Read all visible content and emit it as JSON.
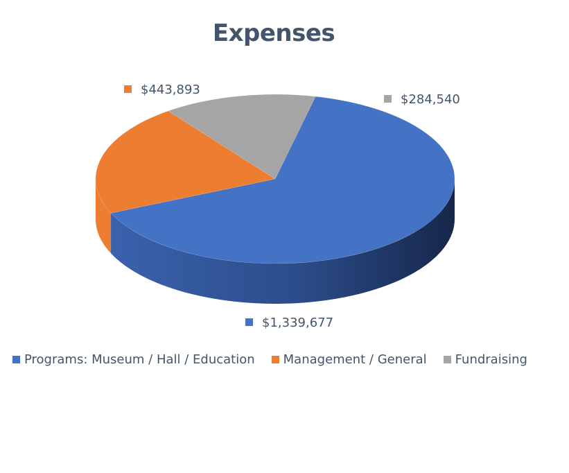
{
  "chart_data": {
    "type": "pie",
    "title": "Expenses",
    "categories": [
      "Programs: Museum / Hall / Education",
      "Management / General",
      "Fundraising"
    ],
    "values": [
      1339677,
      443893,
      284540
    ],
    "data_labels": [
      "$1,339,677",
      "$443,893",
      "$284,540"
    ],
    "colors": [
      "#4472c4",
      "#ed7d31",
      "#a5a5a5"
    ],
    "legend_position": "bottom",
    "style": "3d-pie"
  }
}
